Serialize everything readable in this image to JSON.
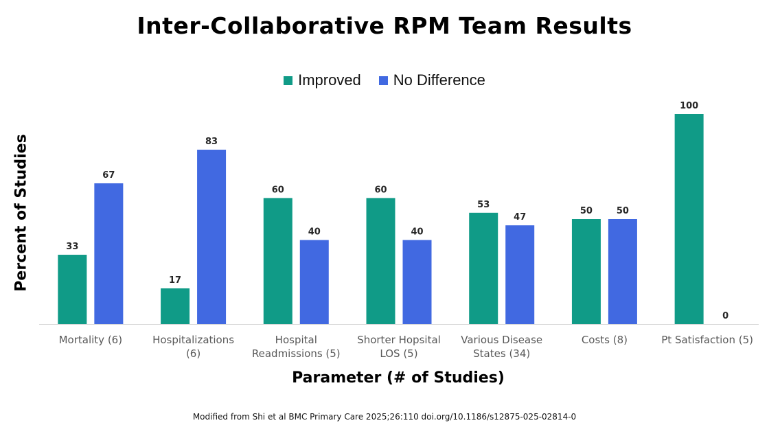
{
  "chart_data": {
    "type": "bar",
    "title": "Inter-Collaborative RPM Team Results",
    "xlabel": "Parameter (# of Studies)",
    "ylabel": "Percent of Studies",
    "categories": [
      [
        "Mortality (6)"
      ],
      [
        "Hospitalizations",
        "(6)"
      ],
      [
        "Hospital",
        "Readmissions (5)"
      ],
      [
        "Shorter Hopsital",
        "LOS (5)"
      ],
      [
        "Various Disease",
        "States (34)"
      ],
      [
        "Costs (8)"
      ],
      [
        "Pt Satisfaction (5)"
      ]
    ],
    "series": [
      {
        "name": "Improved",
        "color": "#109B87",
        "values": [
          33,
          17,
          60,
          60,
          53,
          50,
          100
        ]
      },
      {
        "name": "No Difference",
        "color": "#4169E1",
        "values": [
          67,
          83,
          40,
          40,
          47,
          50,
          0
        ]
      }
    ],
    "ylim": [
      0,
      100
    ],
    "grid": false,
    "legend_position": "top-center",
    "source": "Modified from Shi et al BMC Primary Care 2025;26:110 doi.org/10.1186/s12875-025-02814-0"
  }
}
